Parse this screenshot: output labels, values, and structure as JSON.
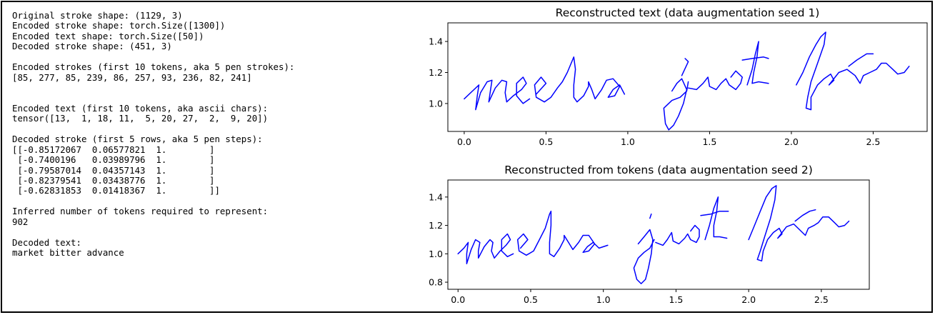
{
  "console": {
    "lines": [
      "Original stroke shape: (1129, 3)",
      "Encoded stroke shape: torch.Size([1300])",
      "Encoded text shape: torch.Size([50])",
      "Decoded stroke shape: (451, 3)",
      "",
      "Encoded strokes (first 10 tokens, aka 5 pen strokes):",
      "[85, 277, 85, 239, 86, 257, 93, 236, 82, 241]",
      "",
      "",
      "Encoded text (first 10 tokens, aka ascii chars):",
      "tensor([13,  1, 18, 11,  5, 20, 27,  2,  9, 20])",
      "",
      "Decoded stroke (first 5 rows, aka 5 pen steps):",
      "[[-0.85172067  0.06577821  1.        ]",
      " [-0.7400196   0.03989796  1.        ]",
      " [-0.79587014  0.04357143  1.        ]",
      " [-0.82379541  0.03438776  1.        ]",
      " [-0.62831853  0.01418367  1.        ]]",
      "",
      "Inferred number of tokens required to represent:",
      "902",
      "",
      "Decoded text:",
      "market bitter advance"
    ]
  },
  "chart_data": [
    {
      "type": "line",
      "title": "Reconstructed text (data augmentation seed 1)",
      "xlim": [
        -0.1,
        2.83
      ],
      "ylim": [
        0.82,
        1.52
      ],
      "xticks": [
        "0.0",
        "0.5",
        "1.0",
        "1.5",
        "2.0",
        "2.5"
      ],
      "xtick_values": [
        0.0,
        0.5,
        1.0,
        1.5,
        2.0,
        2.5
      ],
      "yticks": [
        "1.0",
        "1.2",
        "1.4"
      ],
      "ytick_values": [
        1.0,
        1.2,
        1.4
      ],
      "line_color": "#0000ff",
      "strokes": [
        [
          [
            0.0,
            1.03
          ],
          [
            0.05,
            1.08
          ],
          [
            0.09,
            1.12
          ],
          [
            0.08,
            1.05
          ],
          [
            0.07,
            0.96
          ],
          [
            0.1,
            1.07
          ],
          [
            0.14,
            1.14
          ],
          [
            0.17,
            1.15
          ],
          [
            0.16,
            1.08
          ],
          [
            0.15,
            1.01
          ],
          [
            0.19,
            1.1
          ],
          [
            0.23,
            1.15
          ],
          [
            0.26,
            1.14
          ],
          [
            0.25,
            1.07
          ],
          [
            0.26,
            1.01
          ],
          [
            0.3,
            1.05
          ],
          [
            0.35,
            1.09
          ],
          [
            0.38,
            1.13
          ],
          [
            0.36,
            1.17
          ],
          [
            0.32,
            1.13
          ],
          [
            0.32,
            1.05
          ],
          [
            0.36,
            1.0
          ],
          [
            0.4,
            1.03
          ]
        ],
        [
          [
            0.44,
            1.06
          ],
          [
            0.5,
            1.13
          ],
          [
            0.47,
            1.17
          ],
          [
            0.43,
            1.12
          ],
          [
            0.44,
            1.04
          ],
          [
            0.49,
            1.01
          ],
          [
            0.53,
            1.04
          ],
          [
            0.57,
            1.1
          ],
          [
            0.6,
            1.14
          ],
          [
            0.63,
            1.2
          ],
          [
            0.67,
            1.3
          ],
          [
            0.68,
            1.22
          ],
          [
            0.67,
            1.12
          ],
          [
            0.67,
            1.04
          ],
          [
            0.69,
            1.01
          ],
          [
            0.73,
            1.05
          ],
          [
            0.76,
            1.11
          ],
          [
            0.76,
            1.14
          ],
          [
            0.78,
            1.09
          ],
          [
            0.8,
            1.03
          ],
          [
            0.84,
            1.09
          ],
          [
            0.87,
            1.15
          ],
          [
            0.91,
            1.16
          ],
          [
            0.95,
            1.11
          ],
          [
            0.92,
            1.05
          ],
          [
            0.88,
            1.04
          ],
          [
            0.91,
            1.09
          ],
          [
            0.95,
            1.12
          ],
          [
            0.98,
            1.06
          ]
        ],
        [
          [
            1.33,
            1.18
          ],
          [
            1.37,
            1.27
          ],
          [
            1.35,
            1.29
          ]
        ],
        [
          [
            1.27,
            1.08
          ],
          [
            1.3,
            1.13
          ],
          [
            1.33,
            1.16
          ],
          [
            1.36,
            1.09
          ],
          [
            1.34,
            1.0
          ],
          [
            1.31,
            0.92
          ],
          [
            1.28,
            0.86
          ],
          [
            1.25,
            0.83
          ],
          [
            1.23,
            0.87
          ],
          [
            1.22,
            0.97
          ],
          [
            1.27,
            1.02
          ],
          [
            1.32,
            1.04
          ],
          [
            1.36,
            1.08
          ],
          [
            1.37,
            1.14
          ]
        ],
        [
          [
            1.37,
            1.1
          ],
          [
            1.42,
            1.09
          ],
          [
            1.46,
            1.13
          ],
          [
            1.49,
            1.17
          ],
          [
            1.5,
            1.11
          ],
          [
            1.54,
            1.09
          ],
          [
            1.57,
            1.13
          ],
          [
            1.6,
            1.16
          ],
          [
            1.62,
            1.12
          ],
          [
            1.66,
            1.09
          ],
          [
            1.69,
            1.13
          ],
          [
            1.7,
            1.17
          ],
          [
            1.66,
            1.21
          ],
          [
            1.63,
            1.17
          ]
        ],
        [
          [
            1.73,
            1.12
          ],
          [
            1.76,
            1.22
          ],
          [
            1.78,
            1.32
          ],
          [
            1.8,
            1.4
          ],
          [
            1.79,
            1.3
          ],
          [
            1.77,
            1.2
          ],
          [
            1.76,
            1.13
          ],
          [
            1.8,
            1.14
          ],
          [
            1.86,
            1.13
          ]
        ],
        [
          [
            1.7,
            1.28
          ],
          [
            1.76,
            1.29
          ],
          [
            1.83,
            1.3
          ],
          [
            1.86,
            1.29
          ]
        ],
        [
          [
            2.03,
            1.12
          ],
          [
            2.07,
            1.2
          ],
          [
            2.11,
            1.3
          ],
          [
            2.15,
            1.38
          ],
          [
            2.18,
            1.43
          ],
          [
            2.21,
            1.46
          ],
          [
            2.2,
            1.38
          ],
          [
            2.16,
            1.26
          ],
          [
            2.12,
            1.14
          ],
          [
            2.1,
            1.04
          ],
          [
            2.09,
            0.97
          ],
          [
            2.12,
            0.96
          ],
          [
            2.12,
            1.04
          ],
          [
            2.16,
            1.12
          ],
          [
            2.2,
            1.16
          ],
          [
            2.24,
            1.19
          ],
          [
            2.26,
            1.15
          ],
          [
            2.23,
            1.12
          ],
          [
            2.29,
            1.2
          ],
          [
            2.34,
            1.22
          ],
          [
            2.39,
            1.18
          ],
          [
            2.42,
            1.13
          ],
          [
            2.44,
            1.18
          ],
          [
            2.48,
            1.2
          ],
          [
            2.52,
            1.22
          ],
          [
            2.55,
            1.26
          ],
          [
            2.58,
            1.26
          ],
          [
            2.62,
            1.22
          ],
          [
            2.65,
            1.19
          ],
          [
            2.69,
            1.2
          ],
          [
            2.72,
            1.24
          ]
        ],
        [
          [
            2.35,
            1.24
          ],
          [
            2.4,
            1.28
          ],
          [
            2.46,
            1.32
          ],
          [
            2.5,
            1.32
          ]
        ]
      ]
    },
    {
      "type": "line",
      "title": "Reconstructed from tokens (data augmentation seed 2)",
      "xlim": [
        -0.07,
        2.83
      ],
      "ylim": [
        0.75,
        1.52
      ],
      "xticks": [
        "0.0",
        "0.5",
        "1.0",
        "1.5",
        "2.0",
        "2.5"
      ],
      "xtick_values": [
        0.0,
        0.5,
        1.0,
        1.5,
        2.0,
        2.5
      ],
      "yticks": [
        "0.8",
        "1.0",
        "1.2",
        "1.4"
      ],
      "ytick_values": [
        0.8,
        1.0,
        1.2,
        1.4
      ],
      "line_color": "#0000ff",
      "strokes": [
        [
          [
            0.0,
            1.0
          ],
          [
            0.04,
            1.04
          ],
          [
            0.07,
            1.08
          ],
          [
            0.06,
            1.0
          ],
          [
            0.06,
            0.93
          ],
          [
            0.09,
            1.03
          ],
          [
            0.12,
            1.1
          ],
          [
            0.15,
            1.08
          ],
          [
            0.14,
            1.02
          ],
          [
            0.14,
            0.97
          ],
          [
            0.18,
            1.05
          ],
          [
            0.22,
            1.1
          ],
          [
            0.24,
            1.08
          ],
          [
            0.23,
            1.02
          ],
          [
            0.25,
            0.97
          ],
          [
            0.29,
            1.02
          ],
          [
            0.33,
            1.06
          ],
          [
            0.36,
            1.1
          ],
          [
            0.34,
            1.14
          ],
          [
            0.3,
            1.1
          ],
          [
            0.3,
            1.02
          ],
          [
            0.34,
            0.98
          ],
          [
            0.38,
            1.0
          ]
        ],
        [
          [
            0.43,
            1.04
          ],
          [
            0.48,
            1.1
          ],
          [
            0.45,
            1.14
          ],
          [
            0.41,
            1.1
          ],
          [
            0.42,
            1.02
          ],
          [
            0.47,
            0.99
          ],
          [
            0.52,
            1.02
          ],
          [
            0.56,
            1.1
          ],
          [
            0.6,
            1.18
          ],
          [
            0.63,
            1.28
          ],
          [
            0.64,
            1.3
          ],
          [
            0.64,
            1.2
          ],
          [
            0.63,
            1.08
          ],
          [
            0.63,
            1.0
          ],
          [
            0.66,
            0.98
          ],
          [
            0.7,
            1.04
          ],
          [
            0.73,
            1.1
          ],
          [
            0.73,
            1.13
          ],
          [
            0.76,
            1.08
          ],
          [
            0.79,
            1.03
          ],
          [
            0.83,
            1.08
          ],
          [
            0.86,
            1.13
          ],
          [
            0.9,
            1.13
          ],
          [
            0.94,
            1.07
          ],
          [
            0.9,
            1.02
          ],
          [
            0.86,
            1.01
          ],
          [
            0.89,
            1.05
          ],
          [
            0.93,
            1.08
          ],
          [
            0.97,
            1.04
          ],
          [
            1.03,
            1.06
          ]
        ],
        [
          [
            1.32,
            1.25
          ],
          [
            1.33,
            1.28
          ]
        ],
        [
          [
            1.24,
            1.07
          ],
          [
            1.28,
            1.12
          ],
          [
            1.32,
            1.17
          ],
          [
            1.34,
            1.1
          ],
          [
            1.33,
            1.0
          ],
          [
            1.31,
            0.9
          ],
          [
            1.29,
            0.82
          ],
          [
            1.26,
            0.79
          ],
          [
            1.23,
            0.82
          ],
          [
            1.21,
            0.9
          ],
          [
            1.24,
            0.97
          ],
          [
            1.28,
            1.01
          ],
          [
            1.32,
            1.04
          ],
          [
            1.35,
            1.1
          ]
        ],
        [
          [
            1.36,
            1.08
          ],
          [
            1.41,
            1.06
          ],
          [
            1.44,
            1.1
          ],
          [
            1.47,
            1.15
          ],
          [
            1.48,
            1.09
          ],
          [
            1.52,
            1.07
          ],
          [
            1.56,
            1.11
          ],
          [
            1.58,
            1.14
          ],
          [
            1.6,
            1.1
          ],
          [
            1.64,
            1.08
          ],
          [
            1.66,
            1.12
          ],
          [
            1.66,
            1.17
          ],
          [
            1.63,
            1.2
          ],
          [
            1.6,
            1.16
          ]
        ],
        [
          [
            1.7,
            1.1
          ],
          [
            1.73,
            1.2
          ],
          [
            1.76,
            1.32
          ],
          [
            1.79,
            1.4
          ],
          [
            1.78,
            1.3
          ],
          [
            1.76,
            1.2
          ],
          [
            1.76,
            1.12
          ],
          [
            1.8,
            1.12
          ],
          [
            1.85,
            1.11
          ]
        ],
        [
          [
            1.67,
            1.27
          ],
          [
            1.74,
            1.28
          ],
          [
            1.8,
            1.3
          ],
          [
            1.86,
            1.3
          ]
        ],
        [
          [
            2.0,
            1.1
          ],
          [
            2.04,
            1.2
          ],
          [
            2.08,
            1.3
          ],
          [
            2.12,
            1.4
          ],
          [
            2.16,
            1.46
          ],
          [
            2.19,
            1.48
          ],
          [
            2.18,
            1.38
          ],
          [
            2.15,
            1.25
          ],
          [
            2.11,
            1.12
          ],
          [
            2.08,
            1.02
          ],
          [
            2.06,
            0.96
          ],
          [
            2.09,
            0.95
          ],
          [
            2.1,
            1.02
          ],
          [
            2.13,
            1.1
          ],
          [
            2.17,
            1.15
          ],
          [
            2.21,
            1.18
          ],
          [
            2.23,
            1.14
          ],
          [
            2.2,
            1.11
          ],
          [
            2.26,
            1.19
          ],
          [
            2.31,
            1.21
          ],
          [
            2.35,
            1.17
          ],
          [
            2.39,
            1.13
          ],
          [
            2.41,
            1.18
          ],
          [
            2.45,
            1.2
          ],
          [
            2.48,
            1.22
          ],
          [
            2.51,
            1.26
          ],
          [
            2.55,
            1.26
          ],
          [
            2.59,
            1.22
          ],
          [
            2.62,
            1.19
          ],
          [
            2.66,
            1.2
          ],
          [
            2.69,
            1.23
          ]
        ],
        [
          [
            2.32,
            1.23
          ],
          [
            2.37,
            1.27
          ],
          [
            2.42,
            1.3
          ],
          [
            2.46,
            1.31
          ]
        ]
      ]
    }
  ]
}
